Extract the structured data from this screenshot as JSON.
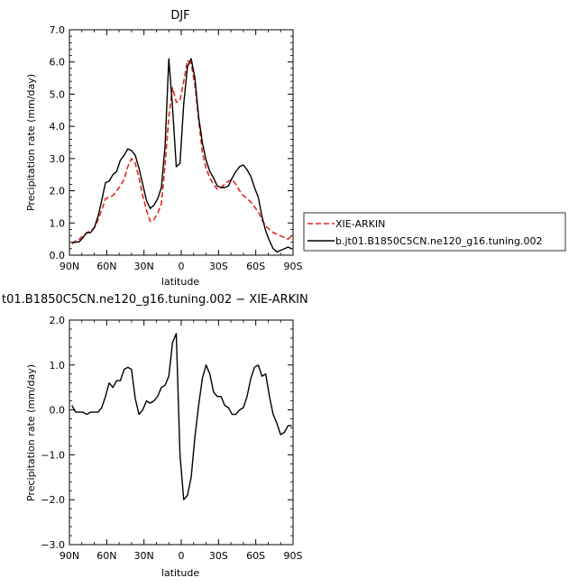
{
  "chart_data": [
    {
      "type": "line",
      "title": "DJF",
      "xlabel": "latitude",
      "ylabel": "Precipitation rate (mm/day)",
      "x_ticks": [
        {
          "value": 90,
          "label": "90N"
        },
        {
          "value": 60,
          "label": "60N"
        },
        {
          "value": 30,
          "label": "30N"
        },
        {
          "value": 0,
          "label": "0"
        },
        {
          "value": -30,
          "label": "30S"
        },
        {
          "value": -60,
          "label": "60S"
        },
        {
          "value": -90,
          "label": "90S"
        }
      ],
      "xlim": [
        90,
        -90
      ],
      "ylim": [
        0,
        7
      ],
      "y_ticks": [
        {
          "value": 0,
          "label": "0.0"
        },
        {
          "value": 1,
          "label": "1.0"
        },
        {
          "value": 2,
          "label": "2.0"
        },
        {
          "value": 3,
          "label": "3.0"
        },
        {
          "value": 4,
          "label": "4.0"
        },
        {
          "value": 5,
          "label": "5.0"
        },
        {
          "value": 6,
          "label": "6.0"
        },
        {
          "value": 7,
          "label": "7.0"
        }
      ],
      "grid": false,
      "legend_position": "outside-right",
      "series": [
        {
          "name": "XIE-ARKIN",
          "color": "#e8251d",
          "dash": "dashed",
          "x": [
            88,
            85,
            82,
            79,
            76,
            73,
            70,
            67,
            64,
            61,
            58,
            55,
            52,
            49,
            46,
            43,
            40,
            37,
            34,
            31,
            28,
            25,
            22,
            19,
            16,
            13,
            10,
            7,
            4,
            1,
            -2,
            -5,
            -8,
            -11,
            -14,
            -17,
            -20,
            -23,
            -26,
            -29,
            -32,
            -35,
            -38,
            -41,
            -44,
            -47,
            -50,
            -53,
            -56,
            -59,
            -62,
            -65,
            -68,
            -71,
            -74,
            -77,
            -80,
            -83,
            -86,
            -89
          ],
          "y": [
            0.35,
            0.45,
            0.5,
            0.6,
            0.7,
            0.75,
            0.85,
            1.1,
            1.4,
            1.75,
            1.8,
            1.85,
            2.0,
            2.15,
            2.35,
            2.75,
            3.0,
            2.85,
            2.4,
            1.85,
            1.4,
            1.05,
            1.1,
            1.3,
            1.6,
            2.8,
            4.3,
            5.2,
            4.75,
            4.8,
            5.4,
            6.05,
            5.95,
            5.3,
            4.2,
            3.2,
            2.7,
            2.4,
            2.2,
            2.05,
            2.1,
            2.2,
            2.3,
            2.35,
            2.2,
            2.0,
            1.85,
            1.75,
            1.65,
            1.5,
            1.35,
            1.1,
            0.9,
            0.8,
            0.7,
            0.65,
            0.6,
            0.55,
            0.5,
            0.6
          ]
        },
        {
          "name": "b.jt01.B1850C5CN.ne120_g16.tuning.002",
          "color": "#000000",
          "dash": "solid",
          "x": [
            88,
            85,
            82,
            79,
            76,
            73,
            70,
            67,
            64,
            61,
            58,
            55,
            52,
            49,
            46,
            43,
            40,
            37,
            34,
            31,
            28,
            25,
            22,
            19,
            16,
            13,
            10,
            7,
            4,
            1,
            -2,
            -5,
            -8,
            -11,
            -14,
            -17,
            -20,
            -23,
            -26,
            -29,
            -32,
            -35,
            -38,
            -41,
            -44,
            -47,
            -50,
            -53,
            -56,
            -59,
            -62,
            -65,
            -68,
            -71,
            -74,
            -77,
            -80,
            -83,
            -86,
            -89
          ],
          "y": [
            0.4,
            0.4,
            0.42,
            0.55,
            0.7,
            0.7,
            0.85,
            1.2,
            1.7,
            2.25,
            2.3,
            2.5,
            2.6,
            2.95,
            3.1,
            3.3,
            3.25,
            3.1,
            2.7,
            2.2,
            1.7,
            1.45,
            1.55,
            1.75,
            2.1,
            3.4,
            6.1,
            4.6,
            2.75,
            2.85,
            4.7,
            5.85,
            6.1,
            5.5,
            4.3,
            3.5,
            2.95,
            2.6,
            2.4,
            2.15,
            2.1,
            2.1,
            2.15,
            2.4,
            2.6,
            2.75,
            2.8,
            2.65,
            2.45,
            2.1,
            1.8,
            1.2,
            0.75,
            0.45,
            0.2,
            0.1,
            0.15,
            0.2,
            0.25,
            0.2
          ]
        }
      ]
    },
    {
      "type": "line",
      "title": "t01.B1850C5CN.ne120_g16.tuning.002 − XIE-ARKIN",
      "xlabel": "latitude",
      "ylabel": "Precipitation rate (mm/day)",
      "x_ticks": [
        {
          "value": 90,
          "label": "90N"
        },
        {
          "value": 60,
          "label": "60N"
        },
        {
          "value": 30,
          "label": "30N"
        },
        {
          "value": 0,
          "label": "0"
        },
        {
          "value": -30,
          "label": "30S"
        },
        {
          "value": -60,
          "label": "60S"
        },
        {
          "value": -90,
          "label": "90S"
        }
      ],
      "xlim": [
        90,
        -90
      ],
      "ylim": [
        -3,
        2
      ],
      "y_ticks": [
        {
          "value": -3,
          "label": "−3.0"
        },
        {
          "value": -2,
          "label": "−2.0"
        },
        {
          "value": -1,
          "label": "−1.0"
        },
        {
          "value": 0,
          "label": "0.0"
        },
        {
          "value": 1,
          "label": "1.0"
        },
        {
          "value": 2,
          "label": "2.0"
        }
      ],
      "grid": false,
      "series": [
        {
          "name": "",
          "color": "#000000",
          "dash": "solid",
          "x": [
            88,
            85,
            82,
            79,
            76,
            73,
            70,
            67,
            64,
            61,
            58,
            55,
            52,
            49,
            46,
            43,
            40,
            37,
            34,
            31,
            28,
            25,
            22,
            19,
            16,
            13,
            10,
            7,
            4,
            1,
            -2,
            -5,
            -8,
            -11,
            -14,
            -17,
            -20,
            -23,
            -26,
            -29,
            -32,
            -35,
            -38,
            -41,
            -44,
            -47,
            -50,
            -53,
            -56,
            -59,
            -62,
            -65,
            -68,
            -71,
            -74,
            -77,
            -80,
            -83,
            -86,
            -89
          ],
          "y": [
            0.1,
            -0.05,
            -0.05,
            -0.05,
            -0.1,
            -0.05,
            -0.05,
            -0.05,
            0.05,
            0.3,
            0.6,
            0.5,
            0.65,
            0.65,
            0.9,
            0.95,
            0.9,
            0.25,
            -0.1,
            0.0,
            0.2,
            0.15,
            0.2,
            0.3,
            0.5,
            0.55,
            0.75,
            1.5,
            1.7,
            -1.0,
            -2.0,
            -1.9,
            -1.5,
            -0.6,
            0.1,
            0.7,
            1.0,
            0.8,
            0.4,
            0.3,
            0.3,
            0.1,
            0.05,
            -0.1,
            -0.1,
            0.0,
            0.05,
            0.3,
            0.7,
            0.95,
            1.0,
            0.75,
            0.8,
            0.3,
            -0.1,
            -0.3,
            -0.55,
            -0.5,
            -0.35,
            -0.35
          ]
        }
      ]
    }
  ]
}
